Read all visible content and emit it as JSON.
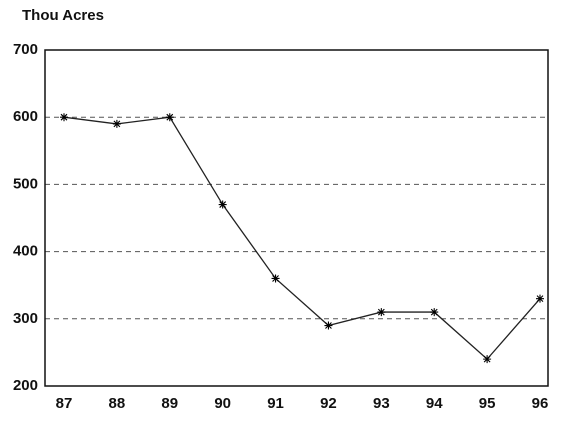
{
  "chart_data": {
    "type": "line",
    "title": "Thou Acres",
    "categories": [
      "87",
      "88",
      "89",
      "90",
      "91",
      "92",
      "93",
      "94",
      "95",
      "96"
    ],
    "series": [
      {
        "color": "#222222",
        "values": [
          600,
          590,
          600,
          470,
          360,
          290,
          310,
          310,
          240,
          330
        ]
      }
    ],
    "ylim": [
      200,
      700
    ],
    "yticks": [
      200,
      300,
      400,
      500,
      600,
      700
    ],
    "grid": true,
    "marker": "asterisk"
  }
}
